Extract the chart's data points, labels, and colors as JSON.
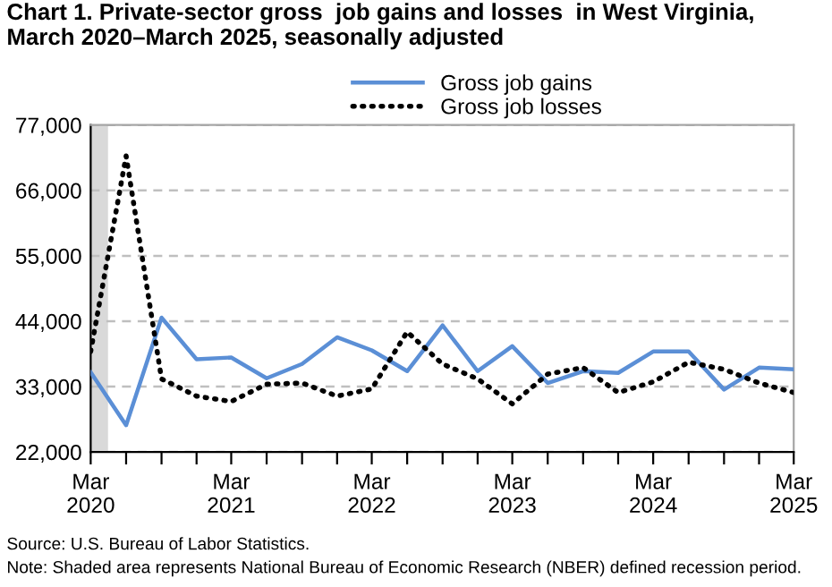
{
  "chart_data": {
    "type": "line",
    "title": "Chart 1. Private-sector gross  job gains and losses  in West Virginia,\nMarch 2020–March 2025, seasonally adjusted",
    "x": [
      "2020-03",
      "2020-06",
      "2020-09",
      "2020-12",
      "2021-03",
      "2021-06",
      "2021-09",
      "2021-12",
      "2022-03",
      "2022-06",
      "2022-09",
      "2022-12",
      "2023-03",
      "2023-06",
      "2023-09",
      "2023-12",
      "2024-03",
      "2024-06",
      "2024-09",
      "2024-12",
      "2025-03"
    ],
    "series": [
      {
        "name": "Gross job gains",
        "color": "#5b8fd6",
        "line_style": "solid",
        "values": [
          35400,
          26500,
          44600,
          37600,
          37900,
          34400,
          36800,
          41300,
          39100,
          35600,
          43300,
          35600,
          39800,
          33600,
          35600,
          35300,
          38900,
          38900,
          32500,
          36200,
          35900
        ]
      },
      {
        "name": "Gross job losses",
        "color": "#000000",
        "line_style": "dotted",
        "values": [
          38900,
          71800,
          34300,
          31400,
          30500,
          33400,
          33600,
          31400,
          32600,
          42200,
          36800,
          34300,
          30100,
          35100,
          36200,
          32000,
          33800,
          37100,
          35900,
          33600,
          32000
        ]
      }
    ],
    "xlim": [
      "2020-03",
      "2025-03"
    ],
    "xticks": [
      {
        "value": "2020-03",
        "label": "Mar\n2020"
      },
      {
        "value": "2020-06",
        "label": null
      },
      {
        "value": "2020-09",
        "label": null
      },
      {
        "value": "2020-12",
        "label": null
      },
      {
        "value": "2021-03",
        "label": "Mar\n2021"
      },
      {
        "value": "2021-06",
        "label": null
      },
      {
        "value": "2021-09",
        "label": null
      },
      {
        "value": "2021-12",
        "label": null
      },
      {
        "value": "2022-03",
        "label": "Mar\n2022"
      },
      {
        "value": "2022-06",
        "label": null
      },
      {
        "value": "2022-09",
        "label": null
      },
      {
        "value": "2022-12",
        "label": null
      },
      {
        "value": "2023-03",
        "label": "Mar\n2023"
      },
      {
        "value": "2023-06",
        "label": null
      },
      {
        "value": "2023-09",
        "label": null
      },
      {
        "value": "2023-12",
        "label": null
      },
      {
        "value": "2024-03",
        "label": "Mar\n2024"
      },
      {
        "value": "2024-06",
        "label": null
      },
      {
        "value": "2024-09",
        "label": null
      },
      {
        "value": "2024-12",
        "label": null
      },
      {
        "value": "2025-03",
        "label": "Mar\n2025"
      }
    ],
    "ylim": [
      22000,
      77000
    ],
    "yticks": [
      {
        "value": 22000,
        "label": "22,000"
      },
      {
        "value": 33000,
        "label": "33,000"
      },
      {
        "value": 44000,
        "label": "44,000"
      },
      {
        "value": 55000,
        "label": "55,000"
      },
      {
        "value": 66000,
        "label": "66,000"
      },
      {
        "value": 77000,
        "label": "77,000"
      }
    ],
    "bands": [
      {
        "axis": "x",
        "from": "2020-03",
        "to": "2020-04-15",
        "label": null,
        "color": "#d9d9d9"
      }
    ],
    "grid": "y",
    "legend": "top",
    "marker": "none",
    "annotations": [
      "Source: U.S. Bureau of Labor Statistics.",
      "Note: Shaded area represents National Bureau of Economic Research (NBER) defined recession period."
    ]
  }
}
